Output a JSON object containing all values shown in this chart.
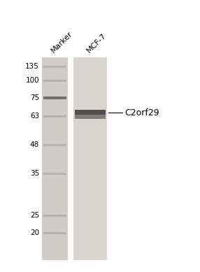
{
  "fig_width": 2.86,
  "fig_height": 3.89,
  "dpi": 100,
  "bg_color": "#ffffff",
  "lane_bg_light": "#dddad6",
  "lane_bg_marker": "#d0ccc8",
  "sample_lane_bg": "#d8d5d1",
  "marker_labels": [
    135,
    100,
    75,
    63,
    48,
    35,
    25,
    20
  ],
  "col_label_marker": "Marker",
  "col_label_sample": "MCF-7",
  "band_label": "C2orf29",
  "marker_label_fontsize": 7.5,
  "col_label_fontsize": 8,
  "band_label_fontsize": 9,
  "marker_band_color": "#aaaaaa",
  "marker_75_color": "#666666",
  "sample_band_dark": "#3a3535",
  "sample_band_mid": "#5a5555",
  "sample_band_light": "#7a7070"
}
